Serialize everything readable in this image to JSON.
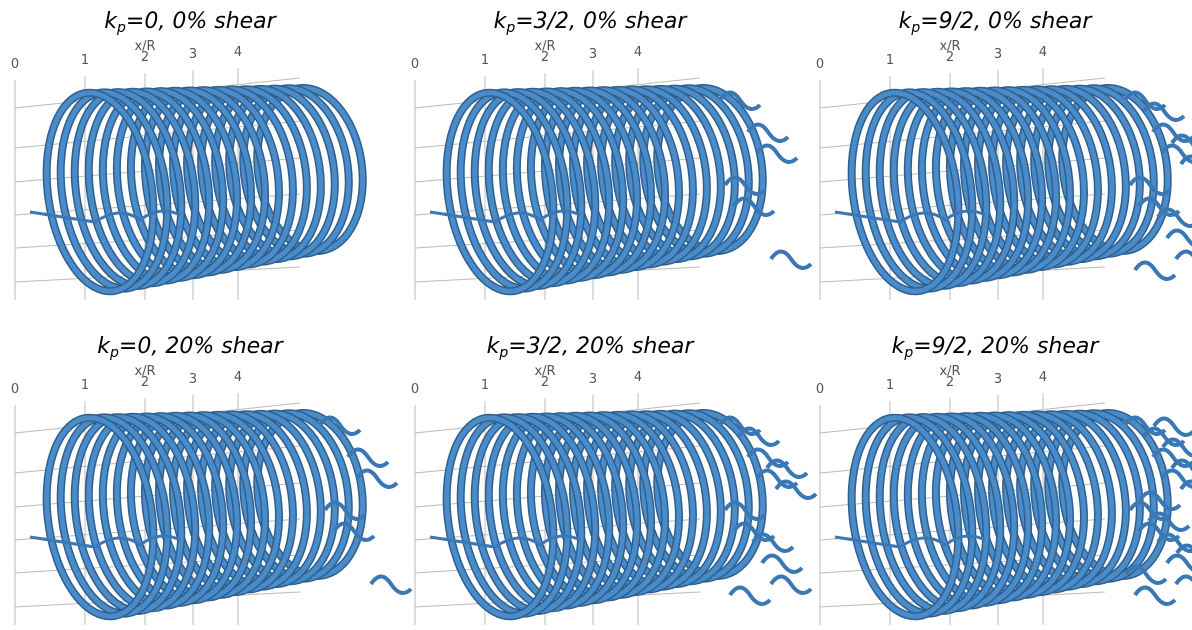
{
  "axis": {
    "label": "x/R",
    "ticks": [
      "0",
      "1",
      "2",
      "3",
      "4"
    ]
  },
  "panels": [
    {
      "title": {
        "symbol": "k",
        "subscript": "p",
        "text": "=0, 0% shear"
      }
    },
    {
      "title": {
        "symbol": "k",
        "subscript": "p",
        "text": "=3/2, 0% shear"
      }
    },
    {
      "title": {
        "symbol": "k",
        "subscript": "p",
        "text": "=9/2, 0% shear"
      }
    },
    {
      "title": {
        "symbol": "k",
        "subscript": "p",
        "text": "=0, 20% shear"
      }
    },
    {
      "title": {
        "symbol": "k",
        "subscript": "p",
        "text": "=3/2, 20% shear"
      }
    },
    {
      "title": {
        "symbol": "k",
        "subscript": "p",
        "text": "=9/2, 20% shear"
      }
    }
  ]
}
